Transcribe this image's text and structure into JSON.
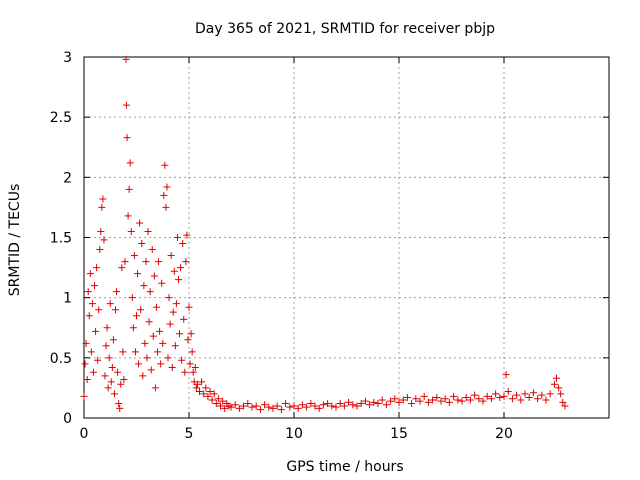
{
  "chart_data": {
    "type": "scatter",
    "title": "Day 365 of 2021, SRMTID for receiver pbjp",
    "xlabel": "GPS time / hours",
    "ylabel": "SRMTID / TECUs",
    "xlim": [
      0,
      25
    ],
    "ylim": [
      0,
      3
    ],
    "xticks": [
      0,
      5,
      10,
      15,
      20
    ],
    "xtick_labels": [
      "0",
      "5",
      "10",
      "15",
      "20"
    ],
    "yticks": [
      0,
      0.5,
      1,
      1.5,
      2,
      2.5,
      3
    ],
    "ytick_labels": [
      "0",
      "0.5",
      "1",
      "1.5",
      "2",
      "2.5",
      "3"
    ],
    "grid": true,
    "marker": "+",
    "series": [
      {
        "name": "SRMTID",
        "color": "#e00000",
        "points": [
          [
            0.0,
            0.18
          ],
          [
            0.05,
            0.45
          ],
          [
            0.1,
            0.62
          ],
          [
            0.15,
            0.32
          ],
          [
            0.2,
            1.05
          ],
          [
            0.25,
            0.85
          ],
          [
            0.3,
            1.2
          ],
          [
            0.35,
            0.55
          ],
          [
            0.4,
            0.95
          ],
          [
            0.45,
            0.38
          ],
          [
            0.5,
            1.1
          ],
          [
            0.55,
            0.72
          ],
          [
            0.6,
            1.25
          ],
          [
            0.65,
            0.48
          ],
          [
            0.7,
            0.9
          ],
          [
            0.75,
            1.4
          ],
          [
            0.8,
            1.55
          ],
          [
            0.85,
            1.75
          ],
          [
            0.9,
            1.82
          ],
          [
            0.95,
            1.48
          ],
          [
            1.0,
            0.35
          ],
          [
            1.05,
            0.6
          ],
          [
            1.1,
            0.75
          ],
          [
            1.15,
            0.25
          ],
          [
            1.2,
            0.5
          ],
          [
            1.25,
            0.95
          ],
          [
            1.3,
            0.3
          ],
          [
            1.35,
            0.42
          ],
          [
            1.4,
            0.65
          ],
          [
            1.45,
            0.2
          ],
          [
            1.5,
            0.9
          ],
          [
            1.55,
            1.05
          ],
          [
            1.6,
            0.38
          ],
          [
            1.65,
            0.12
          ],
          [
            1.7,
            0.08
          ],
          [
            1.75,
            0.28
          ],
          [
            1.8,
            1.25
          ],
          [
            1.85,
            0.55
          ],
          [
            1.9,
            0.32
          ],
          [
            1.95,
            1.3
          ],
          [
            2.0,
            2.98
          ],
          [
            2.02,
            2.6
          ],
          [
            2.05,
            2.33
          ],
          [
            2.1,
            1.68
          ],
          [
            2.15,
            1.9
          ],
          [
            2.2,
            2.12
          ],
          [
            2.25,
            1.55
          ],
          [
            2.3,
            1.0
          ],
          [
            2.35,
            0.75
          ],
          [
            2.4,
            1.35
          ],
          [
            2.45,
            0.55
          ],
          [
            2.5,
            0.85
          ],
          [
            2.55,
            1.2
          ],
          [
            2.6,
            0.45
          ],
          [
            2.65,
            1.62
          ],
          [
            2.7,
            0.9
          ],
          [
            2.75,
            1.45
          ],
          [
            2.8,
            0.35
          ],
          [
            2.85,
            1.1
          ],
          [
            2.9,
            0.62
          ],
          [
            2.95,
            1.3
          ],
          [
            3.0,
            0.5
          ],
          [
            3.05,
            1.55
          ],
          [
            3.1,
            0.8
          ],
          [
            3.15,
            1.05
          ],
          [
            3.2,
            0.4
          ],
          [
            3.25,
            1.4
          ],
          [
            3.3,
            0.68
          ],
          [
            3.35,
            1.18
          ],
          [
            3.4,
            0.25
          ],
          [
            3.45,
            0.92
          ],
          [
            3.5,
            0.55
          ],
          [
            3.55,
            1.3
          ],
          [
            3.6,
            0.72
          ],
          [
            3.65,
            0.45
          ],
          [
            3.7,
            1.12
          ],
          [
            3.75,
            0.62
          ],
          [
            3.8,
            1.85
          ],
          [
            3.85,
            2.1
          ],
          [
            3.9,
            1.75
          ],
          [
            3.95,
            1.92
          ],
          [
            4.0,
            0.5
          ],
          [
            4.05,
            1.0
          ],
          [
            4.1,
            0.78
          ],
          [
            4.15,
            1.35
          ],
          [
            4.2,
            0.42
          ],
          [
            4.25,
            0.88
          ],
          [
            4.3,
            1.22
          ],
          [
            4.35,
            0.6
          ],
          [
            4.4,
            0.95
          ],
          [
            4.45,
            1.5
          ],
          [
            4.5,
            1.15
          ],
          [
            4.55,
            0.7
          ],
          [
            4.6,
            1.25
          ],
          [
            4.65,
            0.48
          ],
          [
            4.7,
            1.45
          ],
          [
            4.75,
            0.82
          ],
          [
            4.8,
            0.38
          ],
          [
            4.85,
            1.3
          ],
          [
            4.9,
            1.52
          ],
          [
            4.95,
            0.65
          ],
          [
            5.0,
            0.92
          ],
          [
            5.05,
            0.45
          ],
          [
            5.1,
            0.7
          ],
          [
            5.15,
            0.55
          ],
          [
            5.2,
            0.38
          ],
          [
            5.25,
            0.3
          ],
          [
            5.3,
            0.42
          ],
          [
            5.35,
            0.25
          ],
          [
            5.4,
            0.28
          ],
          [
            5.5,
            0.22
          ],
          [
            5.6,
            0.3
          ],
          [
            5.7,
            0.2
          ],
          [
            5.8,
            0.25
          ],
          [
            5.9,
            0.18
          ],
          [
            6.0,
            0.22
          ],
          [
            6.1,
            0.15
          ],
          [
            6.2,
            0.2
          ],
          [
            6.3,
            0.12
          ],
          [
            6.4,
            0.16
          ],
          [
            6.5,
            0.1
          ],
          [
            6.6,
            0.14
          ],
          [
            6.7,
            0.08
          ],
          [
            6.8,
            0.12
          ],
          [
            6.9,
            0.1
          ],
          [
            7.0,
            0.09
          ],
          [
            7.2,
            0.11
          ],
          [
            7.4,
            0.08
          ],
          [
            7.6,
            0.1
          ],
          [
            7.8,
            0.12
          ],
          [
            8.0,
            0.09
          ],
          [
            8.2,
            0.1
          ],
          [
            8.4,
            0.07
          ],
          [
            8.6,
            0.11
          ],
          [
            8.8,
            0.09
          ],
          [
            9.0,
            0.08
          ],
          [
            9.2,
            0.1
          ],
          [
            9.4,
            0.07
          ],
          [
            9.6,
            0.12
          ],
          [
            9.8,
            0.09
          ],
          [
            10.0,
            0.1
          ],
          [
            10.2,
            0.08
          ],
          [
            10.4,
            0.11
          ],
          [
            10.6,
            0.09
          ],
          [
            10.8,
            0.12
          ],
          [
            11.0,
            0.1
          ],
          [
            11.2,
            0.08
          ],
          [
            11.4,
            0.11
          ],
          [
            11.6,
            0.12
          ],
          [
            11.8,
            0.1
          ],
          [
            12.0,
            0.09
          ],
          [
            12.2,
            0.12
          ],
          [
            12.4,
            0.1
          ],
          [
            12.6,
            0.13
          ],
          [
            12.8,
            0.11
          ],
          [
            13.0,
            0.1
          ],
          [
            13.2,
            0.12
          ],
          [
            13.4,
            0.14
          ],
          [
            13.6,
            0.11
          ],
          [
            13.8,
            0.13
          ],
          [
            14.0,
            0.12
          ],
          [
            14.2,
            0.15
          ],
          [
            14.4,
            0.11
          ],
          [
            14.6,
            0.14
          ],
          [
            14.8,
            0.16
          ],
          [
            15.0,
            0.13
          ],
          [
            15.2,
            0.15
          ],
          [
            15.4,
            0.17
          ],
          [
            15.6,
            0.12
          ],
          [
            15.8,
            0.16
          ],
          [
            16.0,
            0.14
          ],
          [
            16.2,
            0.18
          ],
          [
            16.4,
            0.13
          ],
          [
            16.6,
            0.15
          ],
          [
            16.8,
            0.17
          ],
          [
            17.0,
            0.14
          ],
          [
            17.2,
            0.16
          ],
          [
            17.4,
            0.13
          ],
          [
            17.6,
            0.18
          ],
          [
            17.8,
            0.15
          ],
          [
            18.0,
            0.14
          ],
          [
            18.2,
            0.17
          ],
          [
            18.4,
            0.15
          ],
          [
            18.6,
            0.19
          ],
          [
            18.8,
            0.16
          ],
          [
            19.0,
            0.14
          ],
          [
            19.2,
            0.18
          ],
          [
            19.4,
            0.16
          ],
          [
            19.6,
            0.2
          ],
          [
            19.8,
            0.17
          ],
          [
            20.0,
            0.18
          ],
          [
            20.1,
            0.36
          ],
          [
            20.2,
            0.22
          ],
          [
            20.4,
            0.16
          ],
          [
            20.6,
            0.19
          ],
          [
            20.8,
            0.15
          ],
          [
            21.0,
            0.2
          ],
          [
            21.2,
            0.17
          ],
          [
            21.4,
            0.21
          ],
          [
            21.6,
            0.16
          ],
          [
            21.8,
            0.19
          ],
          [
            22.0,
            0.15
          ],
          [
            22.2,
            0.2
          ],
          [
            22.4,
            0.28
          ],
          [
            22.5,
            0.33
          ],
          [
            22.6,
            0.25
          ],
          [
            22.7,
            0.2
          ],
          [
            22.8,
            0.13
          ],
          [
            22.9,
            0.1
          ]
        ]
      }
    ]
  }
}
